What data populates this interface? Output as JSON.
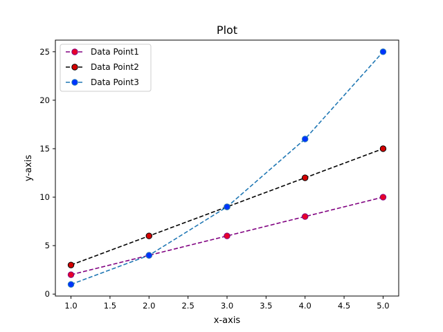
{
  "chart_data": {
    "type": "line",
    "title": "Plot",
    "xlabel": "x-axis",
    "ylabel": "y-axis",
    "xlim": [
      0.8,
      5.2
    ],
    "ylim": [
      -0.2,
      26.2
    ],
    "xticks": [
      "1.0",
      "1.5",
      "2.0",
      "2.5",
      "3.0",
      "3.5",
      "4.0",
      "4.5",
      "5.0"
    ],
    "yticks": [
      "0",
      "5",
      "10",
      "15",
      "20",
      "25"
    ],
    "grid": false,
    "legend_position": "top-left",
    "x": [
      1,
      2,
      3,
      4,
      5
    ],
    "series": [
      {
        "name": "Data Point1",
        "values": [
          2,
          4,
          6,
          8,
          10
        ],
        "line_color": "#800080",
        "marker_color": "#e8002a",
        "marker_edge": "#800080",
        "line_style": "dashed"
      },
      {
        "name": "Data Point2",
        "values": [
          3,
          6,
          9,
          12,
          15
        ],
        "line_color": "#000000",
        "marker_color": "#d40000",
        "marker_edge": "#000000",
        "line_style": "dashed"
      },
      {
        "name": "Data Point3",
        "values": [
          1,
          4,
          9,
          16,
          25
        ],
        "line_color": "#1f77b4",
        "marker_color": "#0033ff",
        "marker_edge": "#1f77b4",
        "line_style": "dashed"
      }
    ]
  }
}
